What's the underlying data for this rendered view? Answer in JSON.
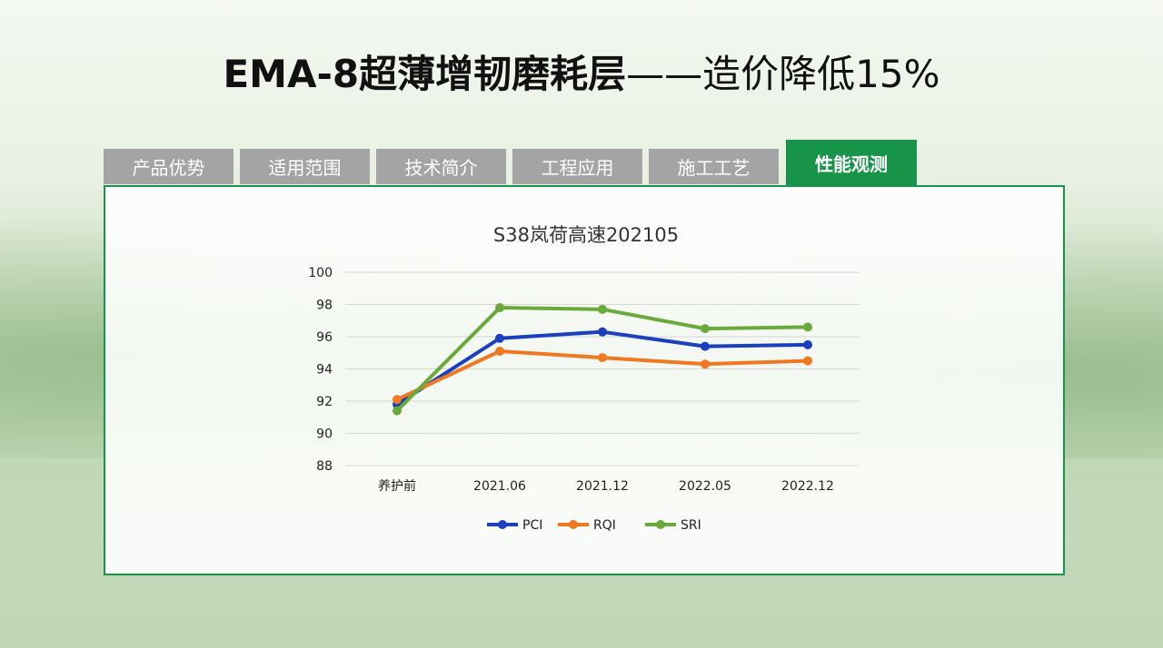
{
  "header": {
    "title_bold": "EMA-8超薄增韧磨耗层",
    "title_rest": "——造价降低15%"
  },
  "tabs": [
    {
      "label": "产品优势",
      "active": false
    },
    {
      "label": "适用范围",
      "active": false
    },
    {
      "label": "技术简介",
      "active": false
    },
    {
      "label": "工程应用",
      "active": false
    },
    {
      "label": "施工工艺",
      "active": false
    },
    {
      "label": "性能观测",
      "active": true
    }
  ],
  "colors": {
    "accent_green": "#17944a",
    "tab_inactive": "#a4a4a4",
    "PCI": "#1a3fbf",
    "RQI": "#f07820",
    "SRI": "#6aaa3a"
  },
  "chart_data": {
    "type": "line",
    "title": "S38岚荷高速202105",
    "categories": [
      "养护前",
      "2021.06",
      "2021.12",
      "2022.05",
      "2022.12"
    ],
    "series": [
      {
        "name": "PCI",
        "values": [
          91.8,
          95.9,
          96.3,
          95.4,
          95.5
        ]
      },
      {
        "name": "RQI",
        "values": [
          92.1,
          95.1,
          94.7,
          94.3,
          94.5
        ]
      },
      {
        "name": "SRI",
        "values": [
          91.4,
          97.8,
          97.7,
          96.5,
          96.6
        ]
      }
    ],
    "ylim": [
      88,
      100
    ],
    "yticks": [
      "88",
      "90",
      "92",
      "94",
      "96",
      "98",
      "100"
    ],
    "grid": true,
    "legend": "bottom"
  }
}
